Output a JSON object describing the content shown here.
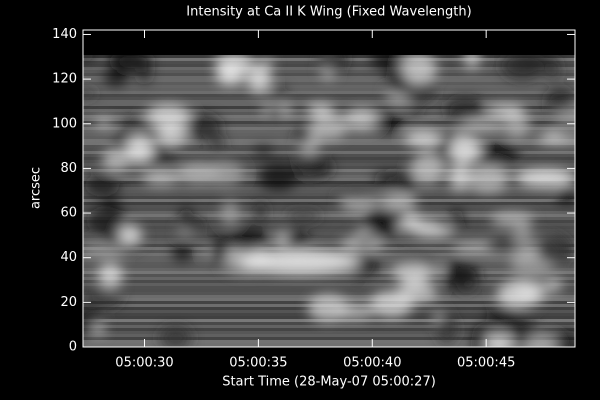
{
  "chart_data": {
    "type": "image",
    "title": "Intensity at Ca II K Wing (Fixed Wavelength)",
    "x_label": "Start Time (28-May-07 05:00:27)",
    "y_label": "arcsec",
    "xlim": [
      27.3,
      48.9
    ],
    "xticks": [
      {
        "value": 30,
        "label": "05:00:30"
      },
      {
        "value": 35,
        "label": "05:00:35"
      },
      {
        "value": 40,
        "label": "05:00:40"
      },
      {
        "value": 45,
        "label": "05:00:45"
      }
    ],
    "ylim": [
      0,
      142
    ],
    "yticks": [
      0,
      20,
      40,
      60,
      80,
      100,
      120,
      140
    ],
    "colormap": "gray"
  }
}
